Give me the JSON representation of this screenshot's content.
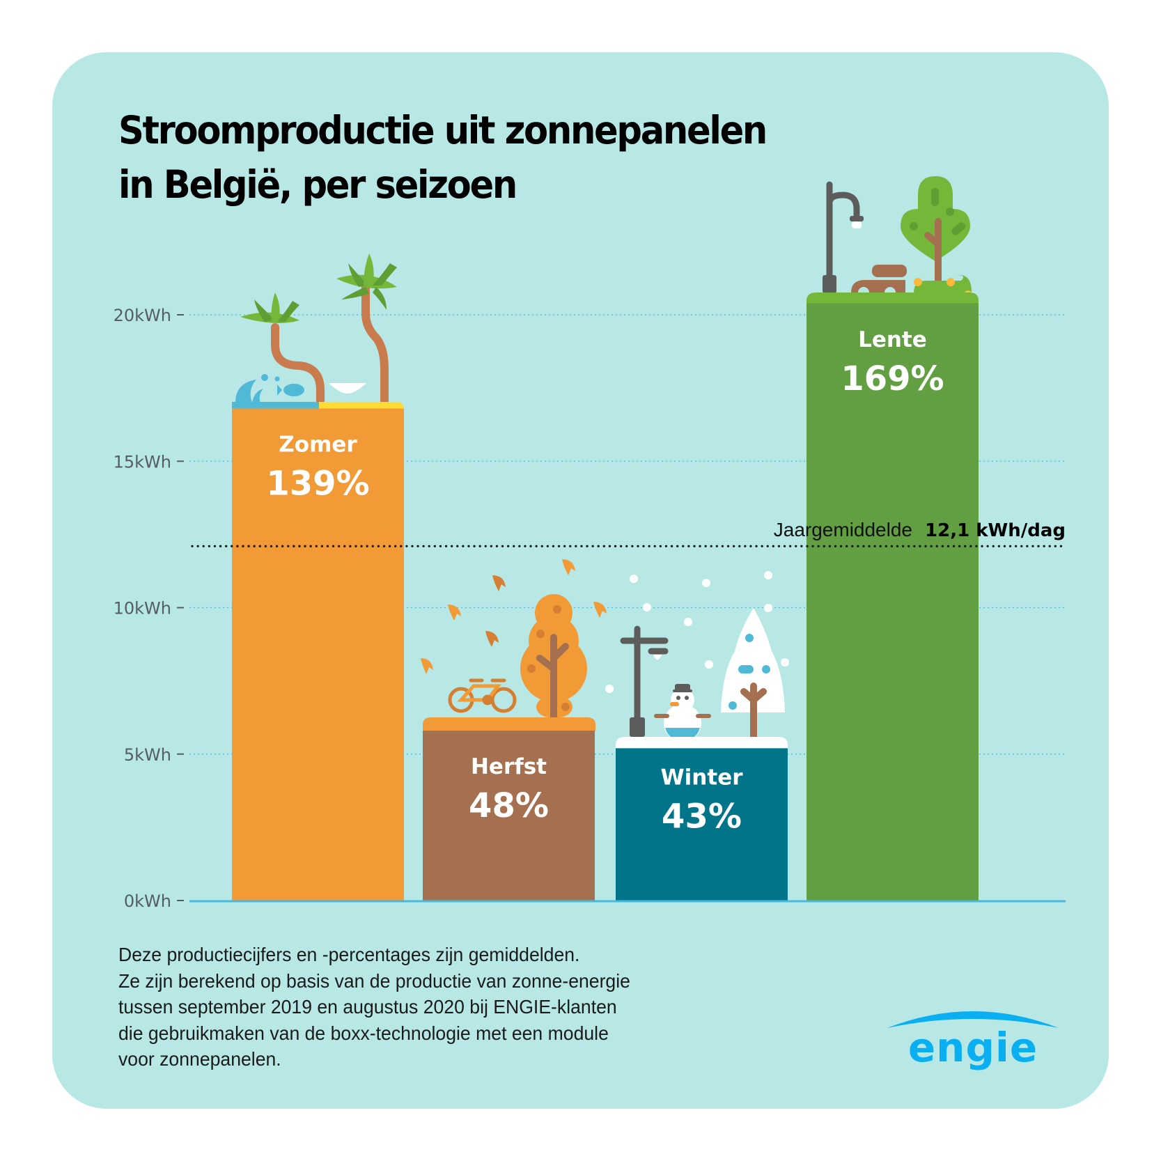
{
  "title": {
    "line1": "Stroomproductie uit zonnepanelen",
    "line2": "in België, per seizoen"
  },
  "colors": {
    "background": "#b7e8e6",
    "zomer": "#f29a35",
    "herfst": "#a57050",
    "winter": "#00758a",
    "lente": "#629f42",
    "axis": "#4cb8d8",
    "logo": "#0aaff1"
  },
  "chart_data": {
    "type": "bar",
    "title": "Stroomproductie uit zonnepanelen in België, per seizoen",
    "xlabel": "",
    "ylabel": "",
    "ylim": [
      0,
      20
    ],
    "yticks": [
      0,
      5,
      10,
      15,
      20
    ],
    "ytick_labels": [
      "0kWh",
      "5kWh",
      "10kWh",
      "15kWh",
      "20kWh"
    ],
    "grid": true,
    "categories": [
      "Zomer",
      "Herfst",
      "Winter",
      "Lente"
    ],
    "values": [
      16.8,
      5.8,
      5.2,
      20.4
    ],
    "percent_labels": [
      "139%",
      "48%",
      "43%",
      "169%"
    ],
    "unit": "kWh/dag",
    "reference_line": {
      "value": 12.1,
      "label": "Jaargemiddelde",
      "value_label": "12,1 kWh/dag"
    }
  },
  "footnote": {
    "lines": [
      "Deze productiecijfers en -percentages zijn gemiddelden.",
      "Ze zijn berekend op basis van de productie van zonne-energie",
      "tussen september 2019 en augustus 2020 bij ENGIE-klanten",
      "die gebruikmaken van de boxx-technologie met een module",
      "voor zonnepanelen."
    ]
  },
  "logo": {
    "text": "ENGIE",
    "icon": "engie-arc-logo"
  }
}
